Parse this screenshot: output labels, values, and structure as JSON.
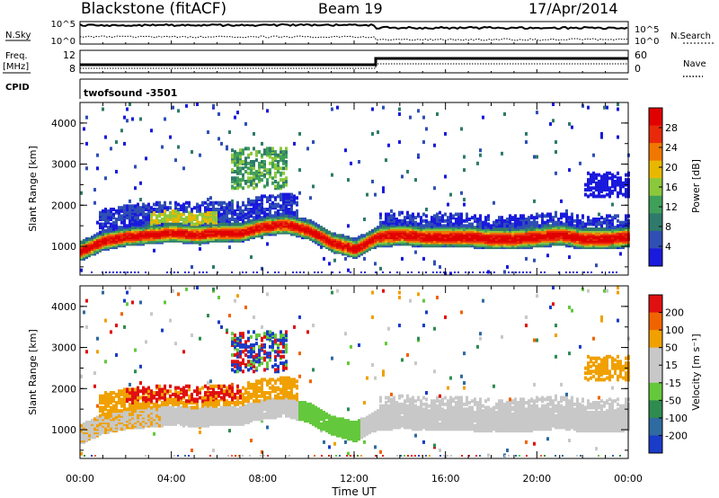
{
  "header": {
    "station": "Blackstone (fitACF)",
    "beam": "Beam 19",
    "date": "17/Apr/2014"
  },
  "left_labels": {
    "nsky": "N.Sky",
    "freq": "Freq.",
    "mhz": "[MHz]",
    "cpid": "CPID"
  },
  "right_labels": {
    "nsearch": "N.Search",
    "nave": "Nave"
  },
  "cpid_text": "twofsound  -3501",
  "noise_panel": {
    "ticks_left": [
      "10^5",
      "10^0"
    ],
    "ticks_right": [
      "10^5",
      "10^0"
    ]
  },
  "freq_panel": {
    "ticks_left": [
      "12",
      "8"
    ],
    "ticks_right": [
      "60",
      "0"
    ]
  },
  "colors": {
    "power_scale": [
      "#1a1adc",
      "#2f4fb4",
      "#2f7a6a",
      "#3fa05a",
      "#8cc83c",
      "#e8b800",
      "#f07800",
      "#e82a0a",
      "#e10000"
    ],
    "velocity_scale": [
      "#1a3cc8",
      "#2f6aa0",
      "#2f8c50",
      "#64c83c",
      "#c8c8c8",
      "#c8c8c8",
      "#f0a000",
      "#f06400",
      "#e01010"
    ]
  },
  "chart_data": [
    {
      "type": "heatmap",
      "panel": "power",
      "ylabel": "Slant Range [km]",
      "yticks": [
        "1000",
        "2000",
        "3000",
        "4000"
      ],
      "ylim": [
        300,
        4500
      ],
      "xlim_hours": [
        0,
        24
      ],
      "colorbar_label": "Power [dB]",
      "colorbar_ticks": [
        "4",
        "8",
        "12",
        "16",
        "20",
        "24",
        "28"
      ],
      "main_band": {
        "time_hours": [
          0,
          1,
          2,
          3,
          4,
          5,
          6,
          7,
          8,
          9,
          10,
          11,
          12,
          13,
          14,
          15,
          16,
          17,
          18,
          19,
          20,
          21,
          22,
          23,
          24
        ],
        "center_km": [
          900,
          1150,
          1250,
          1300,
          1350,
          1300,
          1350,
          1350,
          1500,
          1550,
          1400,
          1100,
          950,
          1250,
          1300,
          1250,
          1250,
          1250,
          1200,
          1200,
          1250,
          1300,
          1200,
          1200,
          1250
        ]
      }
    },
    {
      "type": "heatmap",
      "panel": "velocity",
      "ylabel": "Slant Range [km]",
      "yticks": [
        "1000",
        "2000",
        "3000",
        "4000"
      ],
      "ylim": [
        300,
        4500
      ],
      "xlim_hours": [
        0,
        24
      ],
      "colorbar_label": "Velocity [m s⁻¹]",
      "colorbar_ticks": [
        "200",
        "100",
        "50",
        "15",
        "-15",
        "-50",
        "-100",
        "-200"
      ],
      "xticks": [
        "00:00",
        "04:00",
        "08:00",
        "12:00",
        "16:00",
        "20:00",
        "00:00"
      ],
      "xlabel": "Time UT"
    }
  ]
}
